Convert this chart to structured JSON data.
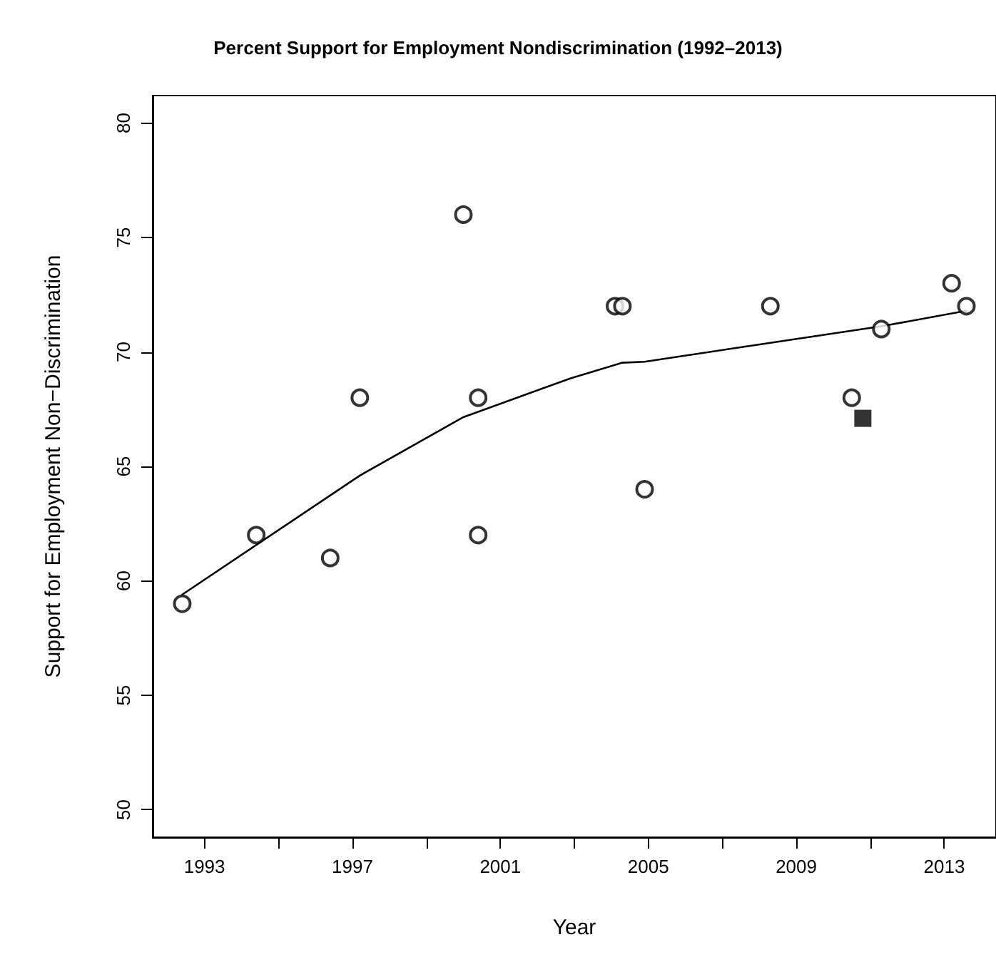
{
  "chart_data": {
    "type": "scatter",
    "title": "Percent Support for Employment Nondiscrimination (1992–2013)",
    "xlabel": "Year",
    "ylabel": "Support for Employment Non−Discrimination",
    "xlim": [
      1991.6,
      2014.4
    ],
    "ylim": [
      48.8,
      81.2
    ],
    "xticks": [
      1993,
      {
        "value": 1995,
        "label": null
      },
      1997,
      {
        "value": 1999,
        "label": null
      },
      2001,
      {
        "value": 2003,
        "label": null
      },
      2005,
      {
        "value": 2007,
        "label": null
      },
      2009,
      {
        "value": 2011,
        "label": null
      },
      2013
    ],
    "yticks": [
      50,
      55,
      60,
      65,
      70,
      75,
      80
    ],
    "grid": false,
    "series": [
      {
        "marker": "circle",
        "color": "#000000",
        "x": [
          1992.4,
          1994.4,
          1996.4,
          1997.2,
          2000.0,
          2000.4,
          2000.4,
          2004.1,
          2004.3,
          2004.9,
          2008.3,
          2010.5,
          2011.3,
          2013.2,
          2013.6
        ],
        "values": [
          59,
          62,
          61,
          68,
          76,
          68,
          62,
          72,
          72,
          64,
          72,
          68,
          71,
          73,
          72
        ]
      },
      {
        "marker": "square",
        "color": "#000000",
        "x": [
          2010.8
        ],
        "values": [
          67.1
        ]
      },
      {
        "type": "line",
        "marker": "none",
        "line_style": "solid",
        "color": "#000000",
        "x": [
          1992.4,
          1997.2,
          2000.0,
          2002.9,
          2004.3,
          2004.9,
          2008.3,
          2011.3,
          2013.6
        ],
        "values": [
          59.4,
          64.6,
          67.15,
          68.85,
          69.53,
          69.57,
          70.4,
          71.12,
          71.8
        ]
      }
    ]
  }
}
